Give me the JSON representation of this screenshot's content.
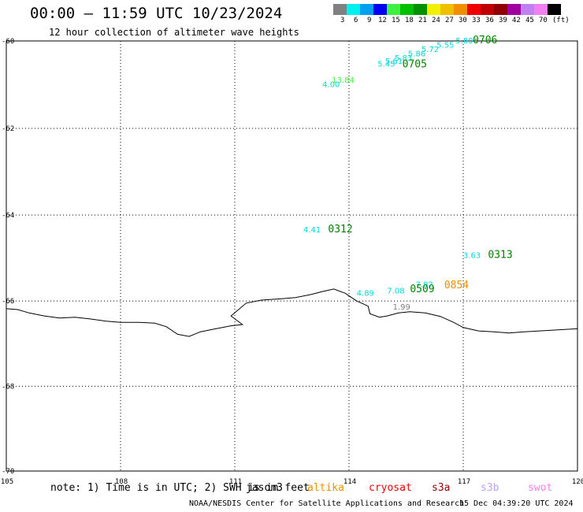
{
  "header": {
    "title": "00:00 – 11:59 UTC 10/23/2024",
    "subtitle": "12 hour collection of altimeter wave heights"
  },
  "color_scale": {
    "colors": [
      "#808080",
      "#00f0f0",
      "#00a0f0",
      "#0000f0",
      "#40f040",
      "#00c000",
      "#009000",
      "#f0f000",
      "#f0c000",
      "#f09000",
      "#f00000",
      "#c00000",
      "#900000",
      "#a000a0",
      "#c080f0",
      "#f080f0",
      "#000000"
    ],
    "labels": [
      "3",
      "6",
      "9",
      "12",
      "15",
      "18",
      "21",
      "24",
      "27",
      "30",
      "33",
      "36",
      "39",
      "42",
      "45",
      "70",
      "(ft)"
    ]
  },
  "axes": {
    "x_ticks": [
      "105",
      "108",
      "111",
      "114",
      "117",
      "120"
    ],
    "y_ticks": [
      "-60",
      "-62",
      "-64",
      "-66",
      "-68",
      "-70"
    ]
  },
  "swh_labels": [
    {
      "text": "5.80",
      "lon": 116.8,
      "lat": -60.05,
      "color": "#00d8d8"
    },
    {
      "text": "5.55",
      "lon": 116.3,
      "lat": -60.15,
      "color": "#00d8d8"
    },
    {
      "text": "5.72",
      "lon": 115.9,
      "lat": -60.25,
      "color": "#00d8d8"
    },
    {
      "text": "5.86",
      "lon": 115.55,
      "lat": -60.35,
      "color": "#00d8d8"
    },
    {
      "text": "5.83",
      "lon": 115.2,
      "lat": -60.45,
      "color": "#00d8d8"
    },
    {
      "text": "5.61",
      "lon": 114.95,
      "lat": -60.52,
      "color": "#00d8d8"
    },
    {
      "text": "5.45",
      "lon": 114.75,
      "lat": -60.58,
      "color": "#00d8d8"
    },
    {
      "text": "13.84",
      "lon": 113.55,
      "lat": -60.95,
      "color": "#40f040"
    },
    {
      "text": "4.00",
      "lon": 113.3,
      "lat": -61.05,
      "color": "#00d8d8"
    },
    {
      "text": "4.41",
      "lon": 112.8,
      "lat": -64.4,
      "color": "#00d8d8"
    },
    {
      "text": "3.63",
      "lon": 117.0,
      "lat": -65.0,
      "color": "#00d8d8"
    },
    {
      "text": "7.92",
      "lon": 115.75,
      "lat": -65.68,
      "color": "#00d8d8"
    },
    {
      "text": "7.08",
      "lon": 115.0,
      "lat": -65.82,
      "color": "#00d8d8"
    },
    {
      "text": "4.89",
      "lon": 114.2,
      "lat": -65.88,
      "color": "#00d8d8"
    },
    {
      "text": "1.99",
      "lon": 115.15,
      "lat": -66.2,
      "color": "#808080"
    }
  ],
  "pass_times": [
    {
      "text": "0706",
      "lon": 117.25,
      "lat": -60.05,
      "color": "#008000"
    },
    {
      "text": "0705",
      "lon": 115.4,
      "lat": -60.6,
      "color": "#008000"
    },
    {
      "text": "0312",
      "lon": 113.45,
      "lat": -64.4,
      "color": "#008000"
    },
    {
      "text": "0313",
      "lon": 117.65,
      "lat": -65.0,
      "color": "#008000"
    },
    {
      "text": "0509",
      "lon": 115.6,
      "lat": -65.8,
      "color": "#008000"
    },
    {
      "text": "0854",
      "lon": 116.5,
      "lat": -65.7,
      "color": "#f09000"
    }
  ],
  "coastline": [
    [
      105.0,
      -66.18
    ],
    [
      105.3,
      -66.2
    ],
    [
      105.6,
      -66.28
    ],
    [
      106.0,
      -66.35
    ],
    [
      106.4,
      -66.4
    ],
    [
      106.8,
      -66.38
    ],
    [
      107.2,
      -66.42
    ],
    [
      107.6,
      -66.47
    ],
    [
      108.0,
      -66.5
    ],
    [
      108.5,
      -66.5
    ],
    [
      108.9,
      -66.52
    ],
    [
      109.2,
      -66.6
    ],
    [
      109.5,
      -66.78
    ],
    [
      109.8,
      -66.83
    ],
    [
      110.1,
      -66.72
    ],
    [
      110.5,
      -66.65
    ],
    [
      110.9,
      -66.58
    ],
    [
      111.2,
      -66.55
    ],
    [
      110.9,
      -66.35
    ],
    [
      111.3,
      -66.05
    ],
    [
      111.7,
      -65.98
    ],
    [
      112.2,
      -65.95
    ],
    [
      112.6,
      -65.92
    ],
    [
      113.0,
      -65.85
    ],
    [
      113.3,
      -65.78
    ],
    [
      113.6,
      -65.72
    ],
    [
      113.9,
      -65.82
    ],
    [
      114.2,
      -66.0
    ],
    [
      114.5,
      -66.12
    ],
    [
      114.55,
      -66.3
    ],
    [
      114.8,
      -66.38
    ],
    [
      115.0,
      -66.35
    ],
    [
      115.3,
      -66.28
    ],
    [
      115.6,
      -66.25
    ],
    [
      116.0,
      -66.28
    ],
    [
      116.4,
      -66.36
    ],
    [
      116.75,
      -66.5
    ],
    [
      117.0,
      -66.62
    ],
    [
      117.4,
      -66.7
    ],
    [
      117.8,
      -66.72
    ],
    [
      118.2,
      -66.75
    ],
    [
      118.6,
      -66.72
    ],
    [
      119.0,
      -66.7
    ],
    [
      119.4,
      -66.68
    ],
    [
      119.8,
      -66.66
    ],
    [
      120.0,
      -66.65
    ]
  ],
  "satellites": [
    {
      "name": "jason3",
      "color": "#000000"
    },
    {
      "name": "altika",
      "color": "#f09000"
    },
    {
      "name": "cryosat",
      "color": "#f00000"
    },
    {
      "name": "s3a",
      "color": "#900000"
    },
    {
      "name": "s3b",
      "color": "#c0a0f0"
    },
    {
      "name": "swot",
      "color": "#f080f0"
    }
  ],
  "footer": {
    "note": "note: 1) Time is in UTC; 2) SWH is in feet",
    "credit": "NOAA/NESDIS Center for Satellite Applications and Research",
    "generated": "15 Dec 04:39:20 UTC 2024"
  }
}
